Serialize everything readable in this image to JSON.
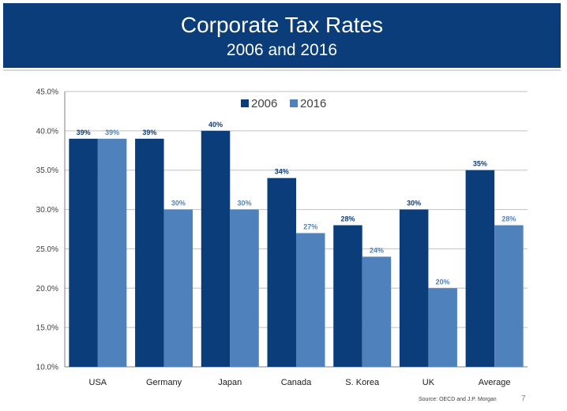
{
  "header": {
    "title": "Corporate Tax Rates",
    "subtitle": "2006 and 2016"
  },
  "colors": {
    "header_bg": "#0b3d7a",
    "series_2006": "#0b3d7a",
    "series_2016": "#4f81bd"
  },
  "chart_data": {
    "type": "bar",
    "title": "Corporate Tax Rates",
    "subtitle": "2006 and 2016",
    "categories": [
      "USA",
      "Germany",
      "Japan",
      "Canada",
      "S. Korea",
      "UK",
      "Average"
    ],
    "series": [
      {
        "name": "2006",
        "values": [
          39,
          39,
          40,
          34,
          28,
          30,
          35
        ],
        "labels": [
          "39%",
          "39%",
          "40%",
          "34%",
          "28%",
          "30%",
          "35%"
        ]
      },
      {
        "name": "2016",
        "values": [
          39,
          30,
          30,
          27,
          24,
          20,
          28
        ],
        "labels": [
          "39%",
          "30%",
          "30%",
          "27%",
          "24%",
          "20%",
          "28%"
        ]
      }
    ],
    "yticks": [
      "10.0%",
      "15.0%",
      "20.0%",
      "25.0%",
      "30.0%",
      "35.0%",
      "40.0%",
      "45.0%"
    ],
    "ylim": [
      10,
      45
    ],
    "ystep": 5,
    "grid": true,
    "legend_position": "top-center",
    "xlabel": "",
    "ylabel": ""
  },
  "footer": {
    "source": "Source:  OECD and J.P. Morgan",
    "page_number": "7"
  }
}
